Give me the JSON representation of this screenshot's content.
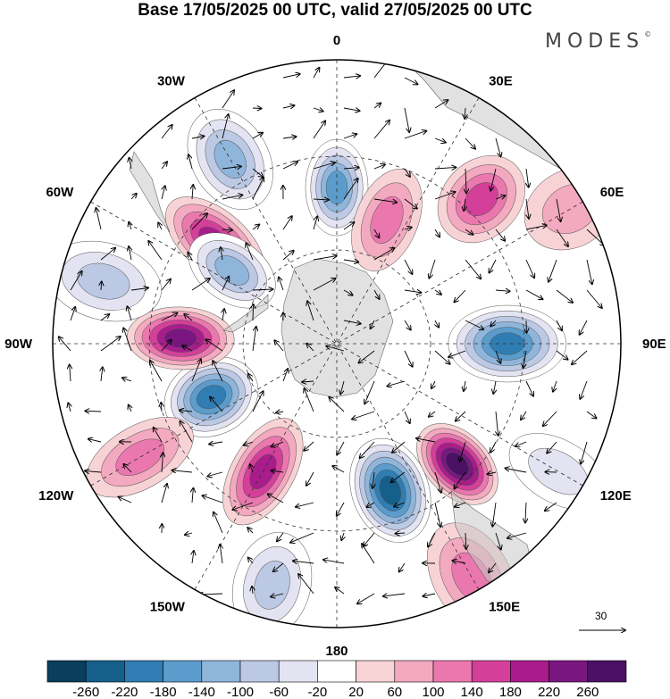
{
  "title": "Base 17/05/2025 00 UTC, valid 27/05/2025 00 UTC",
  "brand": "MODES",
  "brand_mark": "©",
  "longitude_labels": [
    "0",
    "30E",
    "60E",
    "90E",
    "120E",
    "150E",
    "180",
    "150W",
    "120W",
    "90W",
    "60W",
    "30W"
  ],
  "reference_vector": {
    "value": "30",
    "icon": "arrow-right-icon"
  },
  "colorbar": {
    "labels": [
      "-260",
      "-220",
      "-180",
      "-140",
      "-100",
      "-60",
      "-20",
      "20",
      "60",
      "100",
      "140",
      "180",
      "220",
      "260"
    ],
    "colors": [
      "#0b3d5c",
      "#155f8a",
      "#2f7db3",
      "#5b9ccc",
      "#8fb5db",
      "#bcc9e4",
      "#e3e3f1",
      "#ffffff",
      "#f8d3d6",
      "#f3a9bf",
      "#ea78ae",
      "#d43f9a",
      "#a81c8c",
      "#7a1680",
      "#4b1165"
    ]
  },
  "anomaly_centers": [
    {
      "lon": 0,
      "lat_r": 0.55,
      "value": -160
    },
    {
      "lon": 330,
      "lat_r": 0.75,
      "value": -100
    },
    {
      "lon": 310,
      "lat_r": 0.56,
      "value": 160
    },
    {
      "lon": 45,
      "lat_r": 0.72,
      "value": 110
    },
    {
      "lon": 22,
      "lat_r": 0.47,
      "value": 90
    },
    {
      "lon": 90,
      "lat_r": 0.6,
      "value": -190
    },
    {
      "lon": 135,
      "lat_r": 0.6,
      "value": 250
    },
    {
      "lon": 160,
      "lat_r": 0.55,
      "value": -240
    },
    {
      "lon": 210,
      "lat_r": 0.52,
      "value": 150
    },
    {
      "lon": 247,
      "lat_r": 0.48,
      "value": -180
    },
    {
      "lon": 272,
      "lat_r": 0.55,
      "value": 180
    },
    {
      "lon": 285,
      "lat_r": 0.85,
      "value": -90
    },
    {
      "lon": 305,
      "lat_r": 0.45,
      "value": -110
    },
    {
      "lon": 195,
      "lat_r": 0.88,
      "value": -90
    },
    {
      "lon": 240,
      "lat_r": 0.8,
      "value": 60
    },
    {
      "lon": 60,
      "lat_r": 0.95,
      "value": 50
    },
    {
      "lon": 120,
      "lat_r": 0.9,
      "value": -50
    },
    {
      "lon": 150,
      "lat_r": 0.95,
      "value": 60
    }
  ]
}
